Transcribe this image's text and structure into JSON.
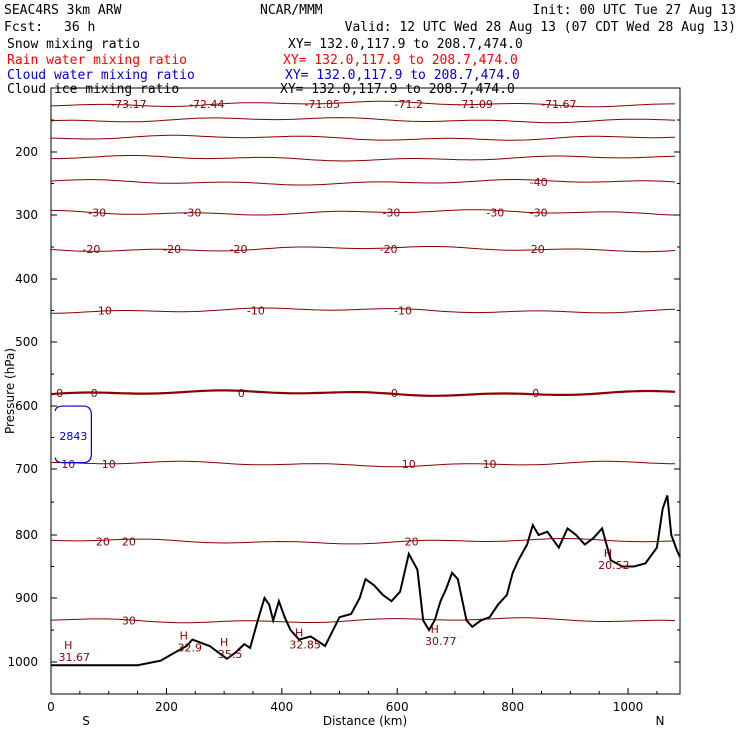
{
  "header": {
    "model": "SEAC4RS  3km ARW",
    "org": "NCAR/MMM",
    "init": "Init: 00 UTC Tue 27 Aug 13",
    "fcst_label": "Fcst:",
    "fcst_value": "36 h",
    "valid": "Valid: 12 UTC Wed 28 Aug 13 (07 CDT Wed 28 Aug 13)"
  },
  "fields": [
    {
      "name": "Snow mixing ratio",
      "xy": "XY= 132.0,117.9 to 208.7,474.0",
      "color": "#000000"
    },
    {
      "name": "Rain water mixing ratio",
      "xy": "XY= 132.0,117.9 to 208.7,474.0",
      "color": "#ff0000"
    },
    {
      "name": "Cloud water mixing ratio",
      "xy": "XY= 132.0,117.9 to 208.7,474.0",
      "color": "#0000cc"
    },
    {
      "name": "Cloud ice mixing ratio",
      "xy": "XY= 132.0,117.9 to 208.7,474.0",
      "color": "#000000"
    }
  ],
  "chart_data": {
    "type": "line",
    "subtype": "vertical cross-section (pressure vs distance)",
    "xlabel": "Distance (km)",
    "ylabel": "Pressure (hPa)",
    "xlim": [
      0,
      1090
    ],
    "ylim": [
      1050,
      100
    ],
    "x_ticks": [
      0,
      200,
      400,
      600,
      800,
      1000
    ],
    "y_ticks": [
      200,
      300,
      400,
      500,
      600,
      700,
      800,
      900,
      1000
    ],
    "end_labels": {
      "left": "S",
      "right": "N"
    },
    "isotherm_color": "#8b0000",
    "temperature_contours": [
      {
        "p": 125,
        "labels": [
          {
            "x": 135,
            "t": "-73.17"
          },
          {
            "x": 270,
            "t": "-72.44"
          },
          {
            "x": 470,
            "t": "-71.85"
          },
          {
            "x": 620,
            "t": "-71.2"
          },
          {
            "x": 735,
            "t": "-71.09"
          },
          {
            "x": 880,
            "t": "-71.67"
          }
        ]
      },
      {
        "p": 150,
        "labels": []
      },
      {
        "p": 178,
        "labels": []
      },
      {
        "p": 210,
        "labels": []
      },
      {
        "p": 248,
        "labels": [
          {
            "x": 845,
            "t": "-40"
          }
        ]
      },
      {
        "p": 296,
        "labels": [
          {
            "x": 80,
            "t": "-30"
          },
          {
            "x": 245,
            "t": "-30"
          },
          {
            "x": 590,
            "t": "-30"
          },
          {
            "x": 770,
            "t": "-30"
          },
          {
            "x": 845,
            "t": "-30"
          }
        ]
      },
      {
        "p": 353,
        "labels": [
          {
            "x": 70,
            "t": "-20"
          },
          {
            "x": 210,
            "t": "-20"
          },
          {
            "x": 325,
            "t": "-20"
          },
          {
            "x": 585,
            "t": "-20"
          },
          {
            "x": 840,
            "t": "-20"
          }
        ]
      },
      {
        "p": 450,
        "labels": [
          {
            "x": 90,
            "t": "-10"
          },
          {
            "x": 355,
            "t": "-10"
          },
          {
            "x": 610,
            "t": "-10"
          }
        ]
      },
      {
        "p": 580,
        "bold": true,
        "labels": [
          {
            "x": 15,
            "t": "0"
          },
          {
            "x": 75,
            "t": "0"
          },
          {
            "x": 330,
            "t": "0"
          },
          {
            "x": 595,
            "t": "0"
          },
          {
            "x": 840,
            "t": "0"
          }
        ]
      },
      {
        "p": 692,
        "labels": [
          {
            "x": 30,
            "t": "10"
          },
          {
            "x": 100,
            "t": "10"
          },
          {
            "x": 620,
            "t": "10"
          },
          {
            "x": 760,
            "t": "10"
          }
        ]
      },
      {
        "p": 810,
        "labels": [
          {
            "x": 90,
            "t": "20"
          },
          {
            "x": 135,
            "t": "20"
          },
          {
            "x": 625,
            "t": "20"
          }
        ]
      },
      {
        "p": 935,
        "labels": [
          {
            "x": 135,
            "t": "30"
          }
        ]
      }
    ],
    "highs": [
      {
        "x": 30,
        "p": 980,
        "t": "31.67"
      },
      {
        "x": 230,
        "p": 965,
        "t": "32.9"
      },
      {
        "x": 300,
        "p": 975,
        "t": "35.5"
      },
      {
        "x": 430,
        "p": 960,
        "t": "32.85"
      },
      {
        "x": 665,
        "p": 955,
        "t": "30.77"
      },
      {
        "x": 965,
        "p": 835,
        "t": "20.52"
      }
    ],
    "cloud_water_label": "2843",
    "terrain": {
      "x": [
        0,
        30,
        100,
        150,
        190,
        215,
        235,
        245,
        260,
        275,
        290,
        305,
        320,
        335,
        345,
        360,
        370,
        378,
        385,
        395,
        405,
        415,
        430,
        450,
        475,
        500,
        520,
        535,
        545,
        560,
        575,
        590,
        605,
        620,
        635,
        645,
        655,
        665,
        675,
        685,
        695,
        705,
        720,
        730,
        745,
        760,
        775,
        790,
        800,
        810,
        825,
        835,
        845,
        860,
        880,
        895,
        910,
        925,
        940,
        955,
        970,
        990,
        1010,
        1030,
        1050,
        1060,
        1068,
        1075,
        1085,
        1090
      ],
      "p": [
        1005,
        1005,
        1005,
        1005,
        998,
        985,
        975,
        965,
        970,
        975,
        985,
        995,
        985,
        972,
        978,
        930,
        900,
        910,
        935,
        905,
        930,
        950,
        965,
        960,
        975,
        930,
        925,
        900,
        870,
        880,
        895,
        905,
        890,
        830,
        855,
        935,
        950,
        935,
        905,
        885,
        860,
        870,
        935,
        945,
        935,
        930,
        910,
        895,
        860,
        840,
        815,
        785,
        800,
        795,
        820,
        790,
        800,
        815,
        805,
        790,
        840,
        850,
        850,
        845,
        820,
        760,
        740,
        800,
        825,
        835
      ]
    }
  }
}
